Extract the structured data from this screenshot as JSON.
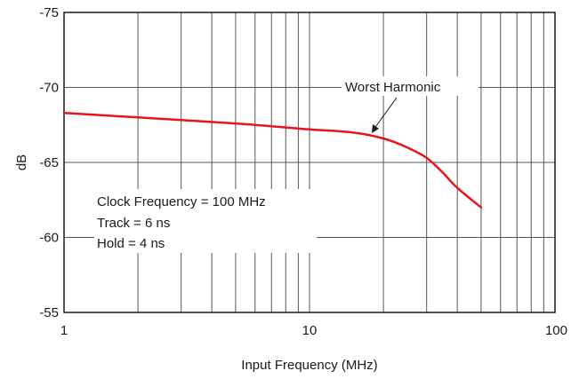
{
  "chart_data": {
    "type": "line",
    "x_scale": "log",
    "xlim": [
      1,
      100
    ],
    "ylim": [
      -75,
      -55
    ],
    "y_inverted": true,
    "xlabel": "Input Frequency (MHz)",
    "ylabel": "dB",
    "x_ticks": [
      1,
      10,
      100
    ],
    "x_tick_labels": [
      "1",
      "10",
      "100"
    ],
    "y_ticks": [
      -75,
      -70,
      -65,
      -60,
      -55
    ],
    "y_tick_labels": [
      "-75",
      "-70",
      "-65",
      "-60",
      "-55"
    ],
    "grid": true,
    "series": [
      {
        "name": "Worst Harmonic",
        "color": "#e8141b",
        "x": [
          1,
          2,
          5,
          10,
          15,
          20,
          25,
          30,
          35,
          40,
          50
        ],
        "y": [
          -68.3,
          -68.0,
          -67.6,
          -67.2,
          -67.0,
          -66.6,
          -66.0,
          -65.3,
          -64.3,
          -63.3,
          -62.0
        ]
      }
    ],
    "annotations": [
      "Worst Harmonic",
      "Clock Frequency = 100 MHz",
      "Track = 6 ns",
      "Hold = 4 ns"
    ]
  }
}
